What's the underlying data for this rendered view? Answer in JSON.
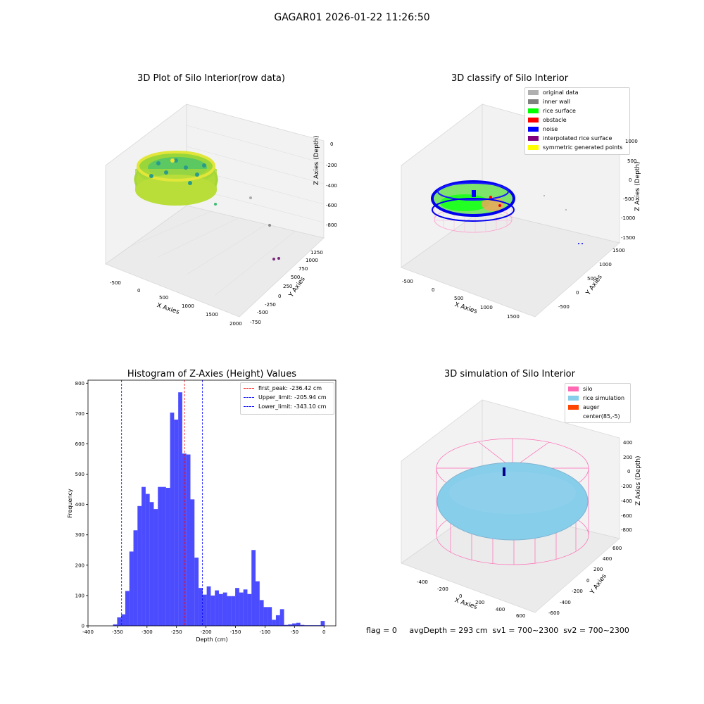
{
  "figure": {
    "suptitle": "GAGAR01 2026-01-22 11:26:50",
    "footer": "flag = 0     avgDepth = 293 cm  sv1 = 700~2300  sv2 = 700~2300"
  },
  "panels": {
    "raw": {
      "title": "3D Plot of Silo Interior(row data)",
      "xlabel": "X Axies",
      "ylabel": "Y Axies",
      "zlabel": "Z Axies (Depth)",
      "xticks": [
        "-500",
        "0",
        "500",
        "1000",
        "1500",
        "2000"
      ],
      "yticks": [
        "-750",
        "-500",
        "-250",
        "0",
        "250",
        "500",
        "750",
        "1000",
        "1250"
      ],
      "zticks": [
        "0",
        "-200",
        "-400",
        "-600",
        "-800"
      ]
    },
    "classify": {
      "title": "3D classify of Silo Interior",
      "xlabel": "X Axies",
      "ylabel": "Y Axies",
      "zlabel": "Z Axies (Depth)",
      "xticks": [
        "-500",
        "0",
        "500",
        "1000",
        "1500"
      ],
      "yticks": [
        "-500",
        "0",
        "500",
        "1000",
        "1500"
      ],
      "zticks": [
        "1000",
        "500",
        "0",
        "-500",
        "-1000",
        "-1500"
      ],
      "legend": [
        {
          "label": "original data",
          "color": "#b0b0b0"
        },
        {
          "label": "inner wall",
          "color": "#808080"
        },
        {
          "label": "rice surface",
          "color": "#00ff00"
        },
        {
          "label": "obstacle",
          "color": "#ff0000"
        },
        {
          "label": "noise",
          "color": "#0000ff"
        },
        {
          "label": "interpolated rice surface",
          "color": "#800080"
        },
        {
          "label": "symmetric generated points",
          "color": "#ffff00"
        }
      ]
    },
    "simulation": {
      "title": "3D simulation of Silo Interior",
      "xlabel": "X Axies",
      "ylabel": "Y Axies",
      "zlabel": "Z Axies (Depth)",
      "xticks": [
        "-400",
        "-200",
        "0",
        "200",
        "400",
        "600"
      ],
      "yticks": [
        "-600",
        "-400",
        "-200",
        "0",
        "200",
        "400",
        "600"
      ],
      "zticks": [
        "400",
        "200",
        "0",
        "-200",
        "-400",
        "-600",
        "-800"
      ],
      "legend": [
        {
          "label": "silo",
          "color": "#ff69b4"
        },
        {
          "label": "rice simulation",
          "color": "#87ceeb"
        },
        {
          "label": "auger",
          "color": "#ff4500"
        },
        {
          "label": "center(85,-5)",
          "color": "#ffffff"
        }
      ]
    }
  },
  "chart_data": {
    "type": "bar",
    "title": "Histogram of Z-Axies (Height) Values",
    "xlabel": "Depth (cm)",
    "ylabel": "Frequency",
    "xlim": [
      -400,
      20
    ],
    "ylim": [
      0,
      810
    ],
    "bar_color": "#0000ff",
    "bar_opacity": 0.7,
    "xticks": [
      -400,
      -350,
      -300,
      -250,
      -200,
      -150,
      -100,
      -50,
      0
    ],
    "yticks": [
      0,
      100,
      200,
      300,
      400,
      500,
      600,
      700,
      800
    ],
    "bins": [
      {
        "x0": -357.5,
        "x1": -350.6,
        "value": 5
      },
      {
        "x0": -350.6,
        "x1": -343.7,
        "value": 28
      },
      {
        "x0": -343.7,
        "x1": -336.8,
        "value": 38
      },
      {
        "x0": -336.8,
        "x1": -329.9,
        "value": 115
      },
      {
        "x0": -329.9,
        "x1": -323.0,
        "value": 245
      },
      {
        "x0": -323.0,
        "x1": -316.1,
        "value": 315
      },
      {
        "x0": -316.1,
        "x1": -309.2,
        "value": 395
      },
      {
        "x0": -309.2,
        "x1": -302.3,
        "value": 458
      },
      {
        "x0": -302.3,
        "x1": -295.4,
        "value": 435
      },
      {
        "x0": -295.4,
        "x1": -288.5,
        "value": 408
      },
      {
        "x0": -288.5,
        "x1": -281.6,
        "value": 385
      },
      {
        "x0": -281.6,
        "x1": -274.7,
        "value": 458
      },
      {
        "x0": -274.7,
        "x1": -267.8,
        "value": 458
      },
      {
        "x0": -267.8,
        "x1": -260.9,
        "value": 455
      },
      {
        "x0": -260.9,
        "x1": -254.0,
        "value": 703
      },
      {
        "x0": -254.0,
        "x1": -247.1,
        "value": 680
      },
      {
        "x0": -247.1,
        "x1": -240.2,
        "value": 770
      },
      {
        "x0": -240.2,
        "x1": -233.3,
        "value": 568
      },
      {
        "x0": -233.3,
        "x1": -226.4,
        "value": 565
      },
      {
        "x0": -226.4,
        "x1": -219.5,
        "value": 417
      },
      {
        "x0": -219.5,
        "x1": -212.6,
        "value": 225
      },
      {
        "x0": -212.6,
        "x1": -205.7,
        "value": 125
      },
      {
        "x0": -205.7,
        "x1": -198.8,
        "value": 103
      },
      {
        "x0": -198.8,
        "x1": -191.9,
        "value": 130
      },
      {
        "x0": -191.9,
        "x1": -185.0,
        "value": 100
      },
      {
        "x0": -185.0,
        "x1": -178.1,
        "value": 117
      },
      {
        "x0": -178.1,
        "x1": -171.2,
        "value": 105
      },
      {
        "x0": -171.2,
        "x1": -164.3,
        "value": 110
      },
      {
        "x0": -164.3,
        "x1": -157.4,
        "value": 98
      },
      {
        "x0": -157.4,
        "x1": -150.5,
        "value": 98
      },
      {
        "x0": -150.5,
        "x1": -143.6,
        "value": 125
      },
      {
        "x0": -143.6,
        "x1": -136.7,
        "value": 110
      },
      {
        "x0": -136.7,
        "x1": -129.8,
        "value": 120
      },
      {
        "x0": -129.8,
        "x1": -122.9,
        "value": 105
      },
      {
        "x0": -122.9,
        "x1": -116.0,
        "value": 250
      },
      {
        "x0": -116.0,
        "x1": -109.1,
        "value": 147
      },
      {
        "x0": -109.1,
        "x1": -102.2,
        "value": 85
      },
      {
        "x0": -102.2,
        "x1": -95.3,
        "value": 62
      },
      {
        "x0": -95.3,
        "x1": -88.4,
        "value": 62
      },
      {
        "x0": -88.4,
        "x1": -81.5,
        "value": 20
      },
      {
        "x0": -81.5,
        "x1": -74.6,
        "value": 35
      },
      {
        "x0": -74.6,
        "x1": -67.7,
        "value": 55
      },
      {
        "x0": -67.7,
        "x1": -60.8,
        "value": 3
      },
      {
        "x0": -60.8,
        "x1": -53.9,
        "value": 5
      },
      {
        "x0": -53.9,
        "x1": -47.0,
        "value": 8
      },
      {
        "x0": -47.0,
        "x1": -40.1,
        "value": 10
      },
      {
        "x0": -40.1,
        "x1": -33.2,
        "value": 3
      },
      {
        "x0": -33.2,
        "x1": -26.3,
        "value": 2
      },
      {
        "x0": -26.3,
        "x1": -19.4,
        "value": 2
      },
      {
        "x0": -19.4,
        "x1": -12.5,
        "value": 2
      },
      {
        "x0": -12.5,
        "x1": -5.6,
        "value": 2
      },
      {
        "x0": -5.6,
        "x1": 1.3,
        "value": 16
      }
    ],
    "vlines": [
      {
        "label": "first_peak: -236.42 cm",
        "x": -236.42,
        "color": "#ff0000"
      },
      {
        "label": "Upper_limit: -205.94 cm",
        "x": -205.94,
        "color": "#0000ff"
      },
      {
        "label": "Lower_limit: -343.10 cm",
        "x": -343.1,
        "color": "#0000ff"
      }
    ],
    "legend_position": "upper right"
  }
}
